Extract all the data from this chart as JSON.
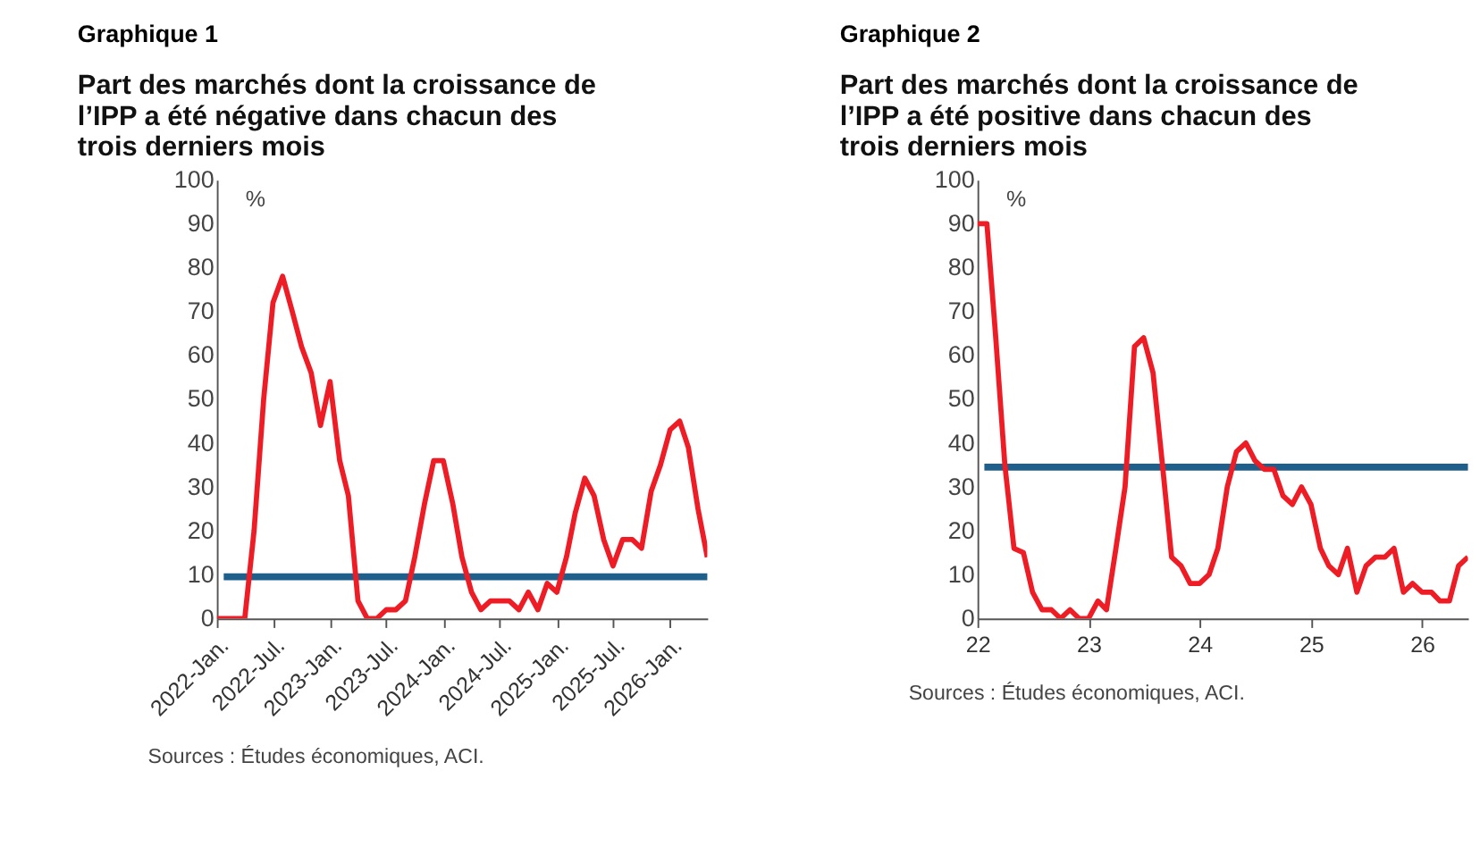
{
  "chart_data": [
    {
      "type": "line",
      "title": "Graphique 1",
      "subtitle": "Part des marchés dont la croissance de l’IPP a été négative dans chacun des trois derniers mois",
      "ylabel": "%",
      "x": [
        "2022-01",
        "2022-02",
        "2022-03",
        "2022-04",
        "2022-05",
        "2022-06",
        "2022-07",
        "2022-08",
        "2022-09",
        "2022-10",
        "2022-11",
        "2022-12",
        "2023-01",
        "2023-02",
        "2023-03",
        "2023-04",
        "2023-05",
        "2023-06",
        "2023-07",
        "2023-08",
        "2023-09",
        "2023-10",
        "2023-11",
        "2023-12",
        "2024-01",
        "2024-02",
        "2024-03",
        "2024-04",
        "2024-05",
        "2024-06",
        "2024-07",
        "2024-08",
        "2024-09",
        "2024-10",
        "2024-11",
        "2024-12",
        "2025-01",
        "2025-02",
        "2025-03",
        "2025-04",
        "2025-05",
        "2025-06",
        "2025-07",
        "2025-08",
        "2025-09",
        "2025-10",
        "2025-11",
        "2025-12",
        "2026-01",
        "2026-02",
        "2026-03",
        "2026-04",
        "2026-05"
      ],
      "series": [
        {
          "color": "#ee1c25",
          "values": [
            0,
            0,
            0,
            0,
            20,
            50,
            72,
            78,
            70,
            62,
            56,
            44,
            54,
            36,
            28,
            4,
            0,
            0,
            2,
            2,
            4,
            14,
            26,
            36,
            36,
            26,
            14,
            6,
            2,
            4,
            4,
            4,
            2,
            6,
            2,
            8,
            6,
            14,
            24,
            32,
            28,
            18,
            12,
            18,
            18,
            16,
            29,
            35,
            43,
            45,
            39,
            25,
            14
          ]
        }
      ],
      "ref_lines": [
        {
          "axis": "y",
          "value": 9.5,
          "color": "#1f5f8b"
        }
      ],
      "xlim": [
        "2022-01",
        "2026-05"
      ],
      "xticks": [
        {
          "value": "2022-01",
          "label": "2022-Jan."
        },
        {
          "value": "2022-07",
          "label": "2022-Jul."
        },
        {
          "value": "2023-01",
          "label": "2023-Jan."
        },
        {
          "value": "2023-07",
          "label": "2023-Jul."
        },
        {
          "value": "2024-01",
          "label": "2024-Jan."
        },
        {
          "value": "2024-07",
          "label": "2024-Jul."
        },
        {
          "value": "2025-01",
          "label": "2025-Jan."
        },
        {
          "value": "2025-07",
          "label": "2025-Jul."
        },
        {
          "value": "2026-01",
          "label": "2026-Jan."
        }
      ],
      "ylim": [
        0,
        100
      ],
      "yticks": [
        0,
        10,
        20,
        30,
        40,
        50,
        60,
        70,
        80,
        90,
        100
      ],
      "grid": false,
      "marker": "none",
      "line_style": "solid",
      "annotations": [
        "Sources : Études économiques, ACI."
      ]
    },
    {
      "type": "line",
      "title": "Graphique 2",
      "subtitle": "Part des marchés dont la croissance de l’IPP a été positive dans chacun des trois derniers mois",
      "ylabel": "%",
      "x": [
        "2022-01",
        "2022-02",
        "2022-03",
        "2022-04",
        "2022-05",
        "2022-06",
        "2022-07",
        "2022-08",
        "2022-09",
        "2022-10",
        "2022-11",
        "2022-12",
        "2023-01",
        "2023-02",
        "2023-03",
        "2023-04",
        "2023-05",
        "2023-06",
        "2023-07",
        "2023-08",
        "2023-09",
        "2023-10",
        "2023-11",
        "2023-12",
        "2024-01",
        "2024-02",
        "2024-03",
        "2024-04",
        "2024-05",
        "2024-06",
        "2024-07",
        "2024-08",
        "2024-09",
        "2024-10",
        "2024-11",
        "2024-12",
        "2025-01",
        "2025-02",
        "2025-03",
        "2025-04",
        "2025-05",
        "2025-06",
        "2025-07",
        "2025-08",
        "2025-09",
        "2025-10",
        "2025-11",
        "2025-12",
        "2026-01",
        "2026-02",
        "2026-03",
        "2026-04",
        "2026-05",
        "2026-06"
      ],
      "series": [
        {
          "color": "#ee1c25",
          "values": [
            90,
            90,
            65,
            35,
            16,
            15,
            6,
            2,
            2,
            0,
            2,
            0,
            0,
            4,
            2,
            16,
            30,
            62,
            64,
            56,
            35,
            14,
            12,
            8,
            8,
            10,
            16,
            30,
            38,
            40,
            36,
            34,
            34,
            28,
            26,
            30,
            26,
            16,
            12,
            10,
            16,
            6,
            12,
            14,
            14,
            16,
            6,
            8,
            6,
            6,
            4,
            4,
            12,
            14
          ]
        }
      ],
      "ref_lines": [
        {
          "axis": "y",
          "value": 34.5,
          "color": "#1f5f8b"
        }
      ],
      "xlim": [
        "2022-01",
        "2026-06"
      ],
      "xticks": [
        {
          "value": "2022-01",
          "label": "22"
        },
        {
          "value": "2023-01",
          "label": "23"
        },
        {
          "value": "2024-01",
          "label": "24"
        },
        {
          "value": "2025-01",
          "label": "25"
        },
        {
          "value": "2026-01",
          "label": "26"
        }
      ],
      "ylim": [
        0,
        100
      ],
      "yticks": [
        0,
        10,
        20,
        30,
        40,
        50,
        60,
        70,
        80,
        90,
        100
      ],
      "grid": false,
      "marker": "none",
      "line_style": "solid",
      "annotations": [
        "Sources : Études économiques, ACI."
      ]
    }
  ]
}
